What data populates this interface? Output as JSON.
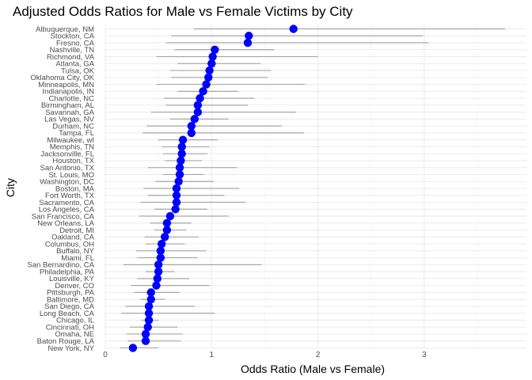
{
  "chart_data": {
    "type": "scatter",
    "title": "Adjusted Odds Ratios for Male vs Female Victims by City",
    "xlabel": "Odds Ratio (Male vs Female)",
    "ylabel": "City",
    "xlim": [
      0,
      3.9
    ],
    "xticks": [
      0,
      1,
      2,
      3
    ],
    "grid": true,
    "point_color": "#0000ff",
    "ci_color": "#a6a6a6",
    "categories": [
      "Albuquerque, NM",
      "Stockton, CA",
      "Fresno, CA",
      "Nashville, TN",
      "Richmond, VA",
      "Atlanta, GA",
      "Tulsa, OK",
      "Oklahoma City, OK",
      "Minneapolis, MN",
      "Indianapolis, IN",
      "Charlotte, NC",
      "Birmingham, AL",
      "Savannah, GA",
      "Las Vegas, NV",
      "Durham, NC",
      "Tampa, FL",
      "Milwaukee, wI",
      "Memphis, TN",
      "Jacksonville, FL",
      "Houston, TX",
      "San Antonio, TX",
      "St. Louis, MO",
      "Washington, DC",
      "Boston, MA",
      "Fort Worth, TX",
      "Sacramento, CA",
      "Los Angeles, CA",
      "San Francisco, CA",
      "New Orleans, LA",
      "Detroit, MI",
      "Oakland, CA",
      "Columbus, OH",
      "Buffalo, NY",
      "Miami, FL",
      "San Bernardino, CA",
      "Philadelphia, PA",
      "Louisville, KY",
      "Denver, CO",
      "Pittsburgh, PA",
      "Baltimore, MD",
      "San Diego, CA",
      "Long Beach, CA",
      "Chicago, IL",
      "Cincinnati, OH",
      "Omaha, NE",
      "Baton Rouge, LA",
      "New York, NY"
    ],
    "or": [
      1.77,
      1.35,
      1.34,
      1.03,
      1.01,
      1.0,
      0.98,
      0.97,
      0.95,
      0.92,
      0.89,
      0.87,
      0.87,
      0.84,
      0.81,
      0.81,
      0.73,
      0.72,
      0.72,
      0.71,
      0.7,
      0.7,
      0.69,
      0.67,
      0.67,
      0.67,
      0.66,
      0.61,
      0.58,
      0.58,
      0.56,
      0.53,
      0.52,
      0.52,
      0.5,
      0.5,
      0.49,
      0.48,
      0.43,
      0.43,
      0.41,
      0.41,
      0.41,
      0.4,
      0.38,
      0.38,
      0.26
    ],
    "low": [
      0.83,
      0.62,
      0.57,
      0.65,
      0.48,
      0.68,
      0.61,
      0.62,
      0.48,
      0.68,
      0.55,
      0.57,
      0.43,
      0.61,
      0.39,
      0.35,
      0.5,
      0.53,
      0.54,
      0.56,
      0.4,
      0.54,
      0.47,
      0.36,
      0.4,
      0.33,
      0.46,
      0.32,
      0.42,
      0.46,
      0.37,
      0.38,
      0.29,
      0.3,
      0.17,
      0.38,
      0.3,
      0.24,
      0.27,
      0.33,
      0.19,
      0.15,
      0.34,
      0.23,
      0.2,
      0.21,
      0.14
    ],
    "high": [
      3.76,
      2.99,
      3.04,
      1.59,
      2.0,
      1.46,
      1.56,
      1.53,
      1.88,
      1.25,
      1.4,
      1.34,
      1.79,
      1.16,
      1.66,
      1.87,
      1.06,
      0.98,
      0.96,
      0.91,
      1.24,
      0.93,
      1.02,
      1.26,
      1.12,
      1.32,
      0.96,
      1.16,
      0.81,
      0.76,
      0.88,
      0.75,
      0.95,
      0.87,
      1.47,
      0.65,
      0.79,
      0.98,
      0.7,
      0.56,
      0.84,
      1.03,
      0.5,
      0.68,
      0.73,
      0.71,
      0.5
    ]
  }
}
